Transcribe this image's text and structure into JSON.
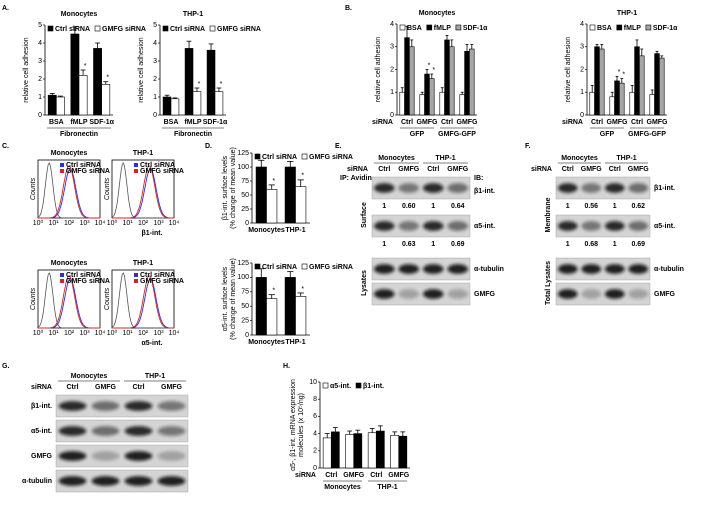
{
  "panel_labels": [
    "A.",
    "B.",
    "C.",
    "D.",
    "E.",
    "F.",
    "G.",
    "H."
  ],
  "chart_data": [
    {
      "type": "bar",
      "title": "Monocytes",
      "ylabel": "relative cell adhesion",
      "xlabel": "Fibronectin",
      "categories": [
        "BSA",
        "fMLP",
        "SDF-1α"
      ],
      "series": [
        {
          "name": "Ctrl siRNA",
          "color": "#000000",
          "values": [
            1.1,
            4.5,
            3.7
          ],
          "errors": [
            0.1,
            0.4,
            0.3
          ]
        },
        {
          "name": "GMFG siRNA",
          "color": "#ffffff",
          "values": [
            1.0,
            2.2,
            1.7
          ],
          "errors": [
            0.05,
            0.3,
            0.15
          ],
          "annotations": [
            null,
            "*",
            "*"
          ]
        }
      ],
      "ylim": [
        0,
        5
      ],
      "yticks": [
        0,
        1,
        2,
        3,
        4,
        5
      ]
    },
    {
      "type": "bar",
      "title": "THP-1",
      "ylabel": "relative cell adhesion",
      "xlabel": "Fibronectin",
      "categories": [
        "BSA",
        "fMLP",
        "SDF-1α"
      ],
      "series": [
        {
          "name": "Ctrl siRNA",
          "color": "#000000",
          "values": [
            1.0,
            3.7,
            3.6
          ],
          "errors": [
            0.1,
            0.4,
            0.35
          ]
        },
        {
          "name": "GMFG siRNA",
          "color": "#ffffff",
          "values": [
            0.9,
            1.3,
            1.3
          ],
          "errors": [
            0.05,
            0.2,
            0.2
          ],
          "annotations": [
            null,
            "*",
            "*"
          ]
        }
      ],
      "ylim": [
        0,
        5
      ],
      "yticks": [
        0,
        1,
        2,
        3,
        4,
        5
      ]
    },
    {
      "type": "bar",
      "title": "Monocytes",
      "ylabel": "relative cell adhesion",
      "category_title": "siRNA",
      "categories": [
        "Ctrl",
        "GMFG",
        "Ctrl",
        "GMFG"
      ],
      "groups": [
        "GFP",
        "GMFG-GFP"
      ],
      "series": [
        {
          "name": "BSA",
          "color": "#ffffff",
          "values": [
            1.0,
            0.9,
            1.0,
            0.9
          ],
          "errors": [
            0.2,
            0.1,
            0.2,
            0.1
          ]
        },
        {
          "name": "fMLP",
          "color": "#000000",
          "values": [
            3.4,
            1.8,
            3.3,
            2.8
          ],
          "errors": [
            0.5,
            0.2,
            0.2,
            0.3
          ],
          "annotations": [
            null,
            "*",
            null,
            null
          ]
        },
        {
          "name": "SDF-1α",
          "color": "#a6a6a6",
          "values": [
            3.0,
            1.6,
            3.0,
            2.9
          ],
          "errors": [
            0.3,
            0.2,
            0.3,
            0.2
          ],
          "annotations": [
            null,
            "*",
            null,
            null
          ]
        }
      ],
      "ylim": [
        0,
        4
      ],
      "yticks": [
        0,
        1,
        2,
        3,
        4
      ]
    },
    {
      "type": "bar",
      "title": "THP-1",
      "ylabel": "relative cell adhesion",
      "category_title": "siRNA",
      "categories": [
        "Ctrl",
        "GMFG",
        "Ctrl",
        "GMFG"
      ],
      "groups": [
        "GFP",
        "GMFG-GFP"
      ],
      "series": [
        {
          "name": "BSA",
          "color": "#ffffff",
          "values": [
            1.0,
            0.8,
            1.0,
            0.9
          ],
          "errors": [
            0.3,
            0.2,
            0.3,
            0.2
          ]
        },
        {
          "name": "fMLP",
          "color": "#000000",
          "values": [
            3.0,
            1.5,
            3.0,
            2.7
          ],
          "errors": [
            0.1,
            0.2,
            0.3,
            0.1
          ],
          "annotations": [
            null,
            "*",
            null,
            null
          ]
        },
        {
          "name": "SDF-1α",
          "color": "#a6a6a6",
          "values": [
            2.9,
            1.4,
            2.6,
            2.5
          ],
          "errors": [
            0.2,
            0.2,
            0.3,
            0.1
          ],
          "annotations": [
            null,
            "*",
            null,
            null
          ]
        }
      ],
      "ylim": [
        0,
        4
      ],
      "yticks": [
        0,
        1,
        2,
        3,
        4
      ]
    },
    {
      "type": "bar",
      "ylabel": [
        "β1-int. surface levels",
        "(% change of mean value)"
      ],
      "categories": [
        "Monocytes",
        "THP-1"
      ],
      "series": [
        {
          "name": "Ctrl siRNA",
          "color": "#000000",
          "values": [
            100,
            100
          ],
          "errors": [
            12,
            10
          ]
        },
        {
          "name": "GMFG siRNA",
          "color": "#ffffff",
          "values": [
            60,
            65
          ],
          "errors": [
            8,
            12
          ],
          "annotations": [
            "*",
            "*"
          ]
        }
      ],
      "ylim": [
        0,
        125
      ],
      "yticks": [
        0,
        25,
        50,
        75,
        100,
        125
      ]
    },
    {
      "type": "bar",
      "ylabel": [
        "α5-int. surface levels",
        "(% change of mean value)"
      ],
      "categories": [
        "Monocytes",
        "THP-1"
      ],
      "series": [
        {
          "name": "Ctrl siRNA",
          "color": "#000000",
          "values": [
            100,
            100
          ],
          "errors": [
            15,
            10
          ]
        },
        {
          "name": "GMFG siRNA",
          "color": "#ffffff",
          "values": [
            63,
            67
          ],
          "errors": [
            7,
            6
          ],
          "annotations": [
            "*",
            "*"
          ]
        }
      ],
      "ylim": [
        0,
        125
      ],
      "yticks": [
        0,
        25,
        50,
        75,
        100,
        125
      ]
    },
    {
      "type": "bar",
      "ylabel": [
        "α5-, β1-int. mRNA expression",
        "molecules (x 10⁵/ng)"
      ],
      "category_title": "siRNA",
      "categories": [
        "Ctrl",
        "GMFG",
        "Ctrl",
        "GMFG"
      ],
      "groups": [
        "Monocytes",
        "THP-1"
      ],
      "series": [
        {
          "name": "α5-int.",
          "color": "#ffffff",
          "values": [
            3.5,
            3.9,
            4.1,
            3.8
          ],
          "errors": [
            0.5,
            0.4,
            0.5,
            0.4
          ]
        },
        {
          "name": "β1-int.",
          "color": "#000000",
          "values": [
            4.2,
            4.0,
            4.3,
            3.7
          ],
          "errors": [
            0.5,
            0.4,
            0.6,
            0.5
          ]
        }
      ],
      "ylim": [
        0,
        10
      ],
      "yticks": [
        0,
        2,
        4,
        6,
        8,
        10
      ]
    }
  ],
  "flow": {
    "panels": [
      {
        "title": "Monocytes"
      },
      {
        "title": "THP-1"
      },
      {
        "title": "Monocytes"
      },
      {
        "title": "THP-1"
      }
    ],
    "legend": [
      "Ctrl siRNA",
      "GMFG siRNA"
    ],
    "ylabel": "Counts",
    "xlabels": [
      "β1-int.",
      "α5-int."
    ],
    "ticks": [
      "10⁰",
      "10¹",
      "10²",
      "10³",
      "10⁴"
    ]
  },
  "blots": [
    {
      "cell_lines": [
        "Monocytes",
        "THP-1"
      ],
      "row_title": "siRNA",
      "lanes": [
        "Ctrl",
        "GMFG",
        "Ctrl",
        "GMFG"
      ],
      "header_left": "IP: Avidin",
      "ib": "IB:",
      "sections": [
        {
          "label": "Surface",
          "rows": [
            {
              "label": "β1-int.",
              "quant": [
                "1",
                "0.60",
                "1",
                "0.64"
              ]
            },
            {
              "label": "α5-int.",
              "quant": [
                "1",
                "0.63",
                "1",
                "0.69"
              ]
            }
          ]
        },
        {
          "label": "Lysates",
          "rows": [
            {
              "label": "α-tubulin"
            },
            {
              "label": "GMFG"
            }
          ]
        }
      ]
    },
    {
      "cell_lines": [
        "Monocytes",
        "THP-1"
      ],
      "row_title": "siRNA",
      "lanes": [
        "Ctrl",
        "GMFG",
        "Ctrl",
        "GMFG"
      ],
      "sections": [
        {
          "label": "Membrane",
          "rows": [
            {
              "label": "β1-int.",
              "quant": [
                "1",
                "0.56",
                "1",
                "0.62"
              ]
            },
            {
              "label": "α5-int.",
              "quant": [
                "1",
                "0.68",
                "1",
                "0.69"
              ]
            }
          ]
        },
        {
          "label": "Total Lysates",
          "rows": [
            {
              "label": "α-tubulin"
            },
            {
              "label": "GMFG"
            }
          ]
        }
      ]
    },
    {
      "cell_lines": [
        "Monocytes",
        "THP-1"
      ],
      "row_title": "siRNA",
      "lanes": [
        "Ctrl",
        "GMFG",
        "Ctrl",
        "GMFG"
      ],
      "sections": [
        {
          "rows": [
            {
              "label": "β1-int."
            },
            {
              "label": "α5-int."
            },
            {
              "label": "GMFG"
            },
            {
              "label": "α-tubulin"
            }
          ]
        }
      ]
    }
  ]
}
